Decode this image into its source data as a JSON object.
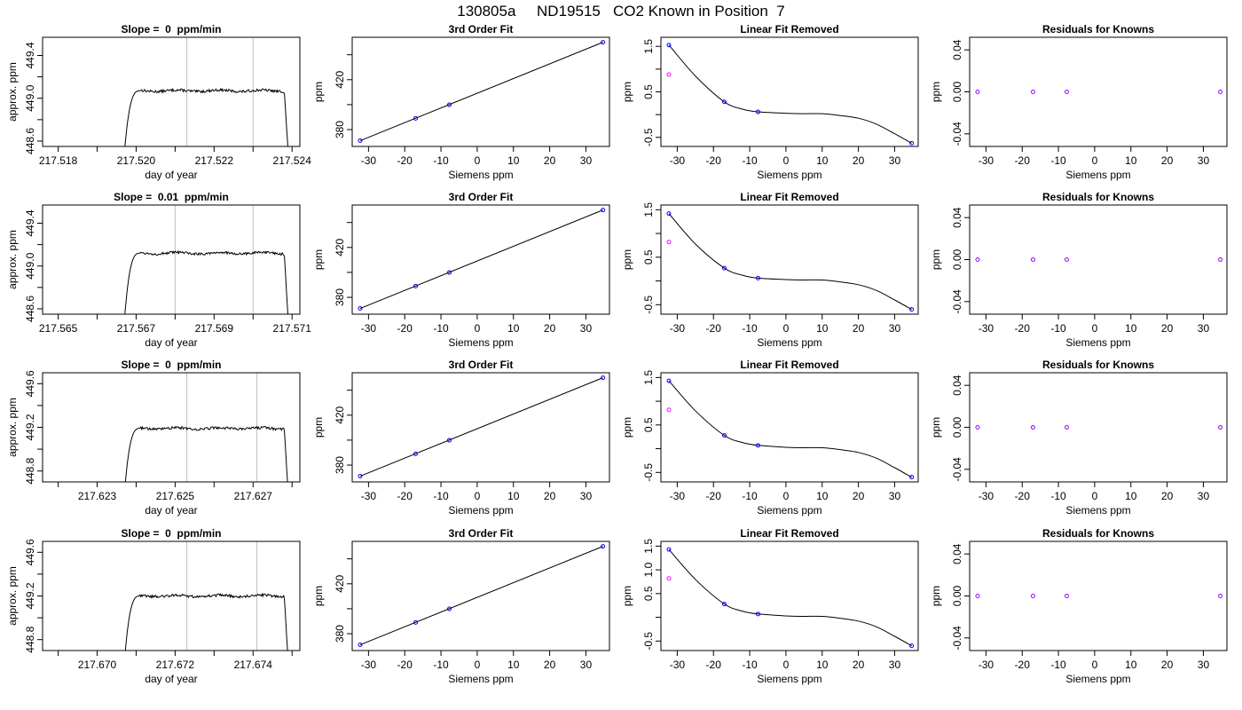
{
  "main_title": "130805a     ND19515   CO2 Known in Position  7",
  "colors": {
    "line": "#000000",
    "gray_marker": "#c0c0c0",
    "point_blue": "#0000ff",
    "point_magenta": "#ff00ff",
    "point_purple": "#9900ff"
  },
  "chart_data": [
    {
      "row": 1,
      "col": 1,
      "type": "line",
      "title": "Slope =  0  ppm/min",
      "xlabel": "day of year",
      "ylabel": "approx. ppm",
      "xlim": [
        217.5176,
        217.5242
      ],
      "ylim": [
        448.55,
        449.57
      ],
      "xticks": [
        217.518,
        217.52,
        217.522,
        217.524
      ],
      "xtick_labels": [
        "217.518",
        "217.520",
        "217.522",
        "217.524"
      ],
      "xminor": [
        217.519,
        217.521,
        217.523
      ],
      "yticks": [
        448.6,
        448.8,
        449.0,
        449.2,
        449.4
      ],
      "ytick_labels": [
        "448.6",
        "",
        "449.0",
        "",
        "449.4"
      ],
      "vlines": [
        217.5213,
        217.523
      ],
      "trace": {
        "start": 217.5197,
        "rise_end": 217.5201,
        "end": 217.5238,
        "drop_end": 217.5239,
        "level": 449.07,
        "bottom": 448.5,
        "noise": 0.012
      }
    },
    {
      "row": 1,
      "col": 2,
      "type": "scatter",
      "title": "3rd Order Fit",
      "xlabel": "Siemens ppm",
      "ylabel": "ppm",
      "xlim": [
        -34.5,
        36.5
      ],
      "ylim": [
        366.5,
        454
      ],
      "xticks": [
        -30,
        -20,
        -10,
        0,
        10,
        20,
        30
      ],
      "xtick_labels": [
        "-30",
        "-20",
        "-10",
        "0",
        "10",
        "20",
        "30"
      ],
      "yticks": [
        380,
        400,
        420,
        440
      ],
      "ytick_labels": [
        "380",
        "",
        "420",
        ""
      ],
      "fit_line": {
        "x": [
          -32.3,
          34.7
        ],
        "y": [
          371.1,
          450.0
        ]
      },
      "points": [
        {
          "x": -32.3,
          "y": 371.1
        },
        {
          "x": -17.0,
          "y": 389.0
        },
        {
          "x": -7.7,
          "y": 399.9
        },
        {
          "x": 34.7,
          "y": 450.0
        }
      ]
    },
    {
      "row": 1,
      "col": 3,
      "type": "scatter",
      "title": "Linear Fit Removed",
      "xlabel": "Siemens ppm",
      "ylabel": "ppm",
      "xlim": [
        -34.5,
        36.5
      ],
      "ylim": [
        -0.7,
        1.7
      ],
      "xticks": [
        -30,
        -20,
        -10,
        0,
        10,
        20,
        30
      ],
      "xtick_labels": [
        "-30",
        "-20",
        "-10",
        "0",
        "10",
        "20",
        "30"
      ],
      "yticks": [
        -0.5,
        0,
        0.5,
        1.0,
        1.5
      ],
      "ytick_labels": [
        "-0.5",
        "",
        "0.5",
        "",
        "1.5"
      ],
      "curve": {
        "x": [
          -32.3,
          -25,
          -17,
          -12,
          -7.7,
          0,
          5,
          10,
          15,
          20,
          25,
          30,
          34.7
        ],
        "y": [
          1.53,
          0.85,
          0.28,
          0.12,
          0.06,
          0.03,
          0.02,
          0.02,
          -0.02,
          -0.08,
          -0.21,
          -0.42,
          -0.63
        ]
      },
      "points_blue": [
        {
          "x": -32.3,
          "y": 1.53
        },
        {
          "x": -17.0,
          "y": 0.28
        },
        {
          "x": -7.7,
          "y": 0.06
        },
        {
          "x": 34.7,
          "y": -0.63
        }
      ],
      "points_magenta": [
        {
          "x": -32.3,
          "y": 0.88
        }
      ]
    },
    {
      "row": 1,
      "col": 4,
      "type": "scatter",
      "title": "Residuals for Knowns",
      "xlabel": "Siemens ppm",
      "ylabel": "ppm",
      "xlim": [
        -34.5,
        36.5
      ],
      "ylim": [
        -0.052,
        0.052
      ],
      "xticks": [
        -30,
        -20,
        -10,
        0,
        10,
        20,
        30
      ],
      "xtick_labels": [
        "-30",
        "-20",
        "-10",
        "0",
        "10",
        "20",
        "30"
      ],
      "yticks": [
        -0.04,
        0,
        0.04
      ],
      "ytick_labels": [
        "-0.04",
        "0.00",
        "0.04"
      ],
      "points": [
        {
          "x": -32.3,
          "y": 0
        },
        {
          "x": -17.0,
          "y": 0
        },
        {
          "x": -7.7,
          "y": 0
        },
        {
          "x": 34.7,
          "y": 0
        }
      ]
    },
    {
      "row": 2,
      "col": 1,
      "type": "line",
      "title": "Slope =  0.01  ppm/min",
      "xlabel": "day of year",
      "ylabel": "approx. ppm",
      "xlim": [
        217.5646,
        217.5712
      ],
      "ylim": [
        448.55,
        449.57
      ],
      "xticks": [
        217.565,
        217.567,
        217.569,
        217.571
      ],
      "xtick_labels": [
        "217.565",
        "217.567",
        "217.569",
        "217.571"
      ],
      "xminor": [
        217.566,
        217.568,
        217.57
      ],
      "yticks": [
        448.6,
        448.8,
        449.0,
        449.2,
        449.4
      ],
      "ytick_labels": [
        "448.6",
        "",
        "449.0",
        "",
        "449.4"
      ],
      "vlines": [
        217.568,
        217.57
      ],
      "trace": {
        "start": 217.5667,
        "rise_end": 217.5671,
        "end": 217.5708,
        "drop_end": 217.5709,
        "level": 449.12,
        "bottom": 448.5,
        "noise": 0.012
      }
    },
    {
      "row": 2,
      "col": 2,
      "type": "scatter",
      "title": "3rd Order Fit",
      "xlabel": "Siemens ppm",
      "ylabel": "ppm",
      "xlim": [
        -34.5,
        36.5
      ],
      "ylim": [
        366.5,
        454
      ],
      "xticks": [
        -30,
        -20,
        -10,
        0,
        10,
        20,
        30
      ],
      "xtick_labels": [
        "-30",
        "-20",
        "-10",
        "0",
        "10",
        "20",
        "30"
      ],
      "yticks": [
        380,
        400,
        420,
        440
      ],
      "ytick_labels": [
        "380",
        "",
        "420",
        ""
      ],
      "fit_line": {
        "x": [
          -32.3,
          34.7
        ],
        "y": [
          371.1,
          450.0
        ]
      },
      "points": [
        {
          "x": -32.3,
          "y": 371.1
        },
        {
          "x": -17.0,
          "y": 389.0
        },
        {
          "x": -7.7,
          "y": 399.9
        },
        {
          "x": 34.7,
          "y": 450.0
        }
      ]
    },
    {
      "row": 2,
      "col": 3,
      "type": "scatter",
      "title": "Linear Fit Removed",
      "xlabel": "Siemens ppm",
      "ylabel": "ppm",
      "xlim": [
        -34.5,
        36.5
      ],
      "ylim": [
        -0.7,
        1.6
      ],
      "xticks": [
        -30,
        -20,
        -10,
        0,
        10,
        20,
        30
      ],
      "xtick_labels": [
        "-30",
        "-20",
        "-10",
        "0",
        "10",
        "20",
        "30"
      ],
      "yticks": [
        -0.5,
        0,
        0.5,
        1.0,
        1.5
      ],
      "ytick_labels": [
        "-0.5",
        "",
        "0.5",
        "",
        "1.5"
      ],
      "curve": {
        "x": [
          -32.3,
          -25,
          -17,
          -12,
          -7.7,
          0,
          5,
          10,
          15,
          20,
          25,
          30,
          34.7
        ],
        "y": [
          1.42,
          0.78,
          0.27,
          0.12,
          0.06,
          0.03,
          0.02,
          0.02,
          -0.02,
          -0.08,
          -0.2,
          -0.4,
          -0.6
        ]
      },
      "points_blue": [
        {
          "x": -32.3,
          "y": 1.42
        },
        {
          "x": -17.0,
          "y": 0.27
        },
        {
          "x": -7.7,
          "y": 0.06
        },
        {
          "x": 34.7,
          "y": -0.6
        }
      ],
      "points_magenta": [
        {
          "x": -32.3,
          "y": 0.82
        }
      ]
    },
    {
      "row": 2,
      "col": 4,
      "type": "scatter",
      "title": "Residuals for Knowns",
      "xlabel": "Siemens ppm",
      "ylabel": "ppm",
      "xlim": [
        -34.5,
        36.5
      ],
      "ylim": [
        -0.052,
        0.052
      ],
      "xticks": [
        -30,
        -20,
        -10,
        0,
        10,
        20,
        30
      ],
      "xtick_labels": [
        "-30",
        "-20",
        "-10",
        "0",
        "10",
        "20",
        "30"
      ],
      "yticks": [
        -0.04,
        0,
        0.04
      ],
      "ytick_labels": [
        "-0.04",
        "0.00",
        "0.04"
      ],
      "points": [
        {
          "x": -32.3,
          "y": 0
        },
        {
          "x": -17.0,
          "y": 0
        },
        {
          "x": -7.7,
          "y": 0
        },
        {
          "x": 34.7,
          "y": 0
        }
      ]
    },
    {
      "row": 3,
      "col": 1,
      "type": "line",
      "title": "Slope =  0  ppm/min",
      "xlabel": "day of year",
      "ylabel": "approx. ppm",
      "xlim": [
        217.6216,
        217.6282
      ],
      "ylim": [
        448.7,
        449.7
      ],
      "xticks": [
        217.623,
        217.625,
        217.627
      ],
      "xtick_labels": [
        "217.623",
        "217.625",
        "217.627"
      ],
      "xminor": [
        217.622,
        217.624,
        217.626,
        217.628
      ],
      "yticks": [
        448.8,
        449.0,
        449.2,
        449.4,
        449.6
      ],
      "ytick_labels": [
        "448.8",
        "",
        "449.2",
        "",
        "449.6"
      ],
      "vlines": [
        217.6253,
        217.6271
      ],
      "trace": {
        "start": 217.6237,
        "rise_end": 217.6241,
        "end": 217.6278,
        "drop_end": 217.6279,
        "level": 449.19,
        "bottom": 448.6,
        "noise": 0.012
      }
    },
    {
      "row": 3,
      "col": 2,
      "type": "scatter",
      "title": "3rd Order Fit",
      "xlabel": "Siemens ppm",
      "ylabel": "ppm",
      "xlim": [
        -34.5,
        36.5
      ],
      "ylim": [
        366.5,
        454
      ],
      "xticks": [
        -30,
        -20,
        -10,
        0,
        10,
        20,
        30
      ],
      "xtick_labels": [
        "-30",
        "-20",
        "-10",
        "0",
        "10",
        "20",
        "30"
      ],
      "yticks": [
        380,
        400,
        420,
        440
      ],
      "ytick_labels": [
        "380",
        "",
        "420",
        ""
      ],
      "fit_line": {
        "x": [
          -32.3,
          34.7
        ],
        "y": [
          371.1,
          450.0
        ]
      },
      "points": [
        {
          "x": -32.3,
          "y": 371.1
        },
        {
          "x": -17.0,
          "y": 389.0
        },
        {
          "x": -7.7,
          "y": 399.9
        },
        {
          "x": 34.7,
          "y": 450.0
        }
      ]
    },
    {
      "row": 3,
      "col": 3,
      "type": "scatter",
      "title": "Linear Fit Removed",
      "xlabel": "Siemens ppm",
      "ylabel": "ppm",
      "xlim": [
        -34.5,
        36.5
      ],
      "ylim": [
        -0.7,
        1.6
      ],
      "xticks": [
        -30,
        -20,
        -10,
        0,
        10,
        20,
        30
      ],
      "xtick_labels": [
        "-30",
        "-20",
        "-10",
        "0",
        "10",
        "20",
        "30"
      ],
      "yticks": [
        -0.5,
        0,
        0.5,
        1.0,
        1.5
      ],
      "ytick_labels": [
        "-0.5",
        "",
        "0.5",
        "",
        "1.5"
      ],
      "curve": {
        "x": [
          -32.3,
          -25,
          -17,
          -12,
          -7.7,
          0,
          5,
          10,
          15,
          20,
          25,
          30,
          34.7
        ],
        "y": [
          1.43,
          0.8,
          0.28,
          0.13,
          0.07,
          0.03,
          0.02,
          0.02,
          -0.02,
          -0.08,
          -0.2,
          -0.4,
          -0.6
        ]
      },
      "points_blue": [
        {
          "x": -32.3,
          "y": 1.43
        },
        {
          "x": -17.0,
          "y": 0.28
        },
        {
          "x": -7.7,
          "y": 0.07
        },
        {
          "x": 34.7,
          "y": -0.6
        }
      ],
      "points_magenta": [
        {
          "x": -32.3,
          "y": 0.82
        }
      ]
    },
    {
      "row": 3,
      "col": 4,
      "type": "scatter",
      "title": "Residuals for Knowns",
      "xlabel": "Siemens ppm",
      "ylabel": "ppm",
      "xlim": [
        -34.5,
        36.5
      ],
      "ylim": [
        -0.052,
        0.052
      ],
      "xticks": [
        -30,
        -20,
        -10,
        0,
        10,
        20,
        30
      ],
      "xtick_labels": [
        "-30",
        "-20",
        "-10",
        "0",
        "10",
        "20",
        "30"
      ],
      "yticks": [
        -0.04,
        0,
        0.04
      ],
      "ytick_labels": [
        "-0.04",
        "0.00",
        "0.04"
      ],
      "points": [
        {
          "x": -32.3,
          "y": 0
        },
        {
          "x": -17.0,
          "y": 0
        },
        {
          "x": -7.7,
          "y": 0
        },
        {
          "x": 34.7,
          "y": 0
        }
      ]
    },
    {
      "row": 4,
      "col": 1,
      "type": "line",
      "title": "Slope =  0  ppm/min",
      "xlabel": "day of year",
      "ylabel": "approx. ppm",
      "xlim": [
        217.6686,
        217.6752
      ],
      "ylim": [
        448.7,
        449.7
      ],
      "xticks": [
        217.67,
        217.672,
        217.674
      ],
      "xtick_labels": [
        "217.670",
        "217.672",
        "217.674"
      ],
      "xminor": [
        217.669,
        217.671,
        217.673,
        217.675
      ],
      "yticks": [
        448.8,
        449.0,
        449.2,
        449.4,
        449.6
      ],
      "ytick_labels": [
        "448.8",
        "",
        "449.2",
        "",
        "449.6"
      ],
      "vlines": [
        217.6723,
        217.6741
      ],
      "trace": {
        "start": 217.6707,
        "rise_end": 217.6711,
        "end": 217.6748,
        "drop_end": 217.6749,
        "level": 449.2,
        "bottom": 448.6,
        "noise": 0.012
      }
    },
    {
      "row": 4,
      "col": 2,
      "type": "scatter",
      "title": "3rd Order Fit",
      "xlabel": "Siemens ppm",
      "ylabel": "ppm",
      "xlim": [
        -34.5,
        36.5
      ],
      "ylim": [
        366.5,
        454
      ],
      "xticks": [
        -30,
        -20,
        -10,
        0,
        10,
        20,
        30
      ],
      "xtick_labels": [
        "-30",
        "-20",
        "-10",
        "0",
        "10",
        "20",
        "30"
      ],
      "yticks": [
        380,
        400,
        420,
        440
      ],
      "ytick_labels": [
        "380",
        "",
        "420",
        ""
      ],
      "fit_line": {
        "x": [
          -32.3,
          34.7
        ],
        "y": [
          371.1,
          450.0
        ]
      },
      "points": [
        {
          "x": -32.3,
          "y": 371.1
        },
        {
          "x": -17.0,
          "y": 389.0
        },
        {
          "x": -7.7,
          "y": 399.9
        },
        {
          "x": 34.7,
          "y": 450.0
        }
      ]
    },
    {
      "row": 4,
      "col": 3,
      "type": "scatter",
      "title": "Linear Fit Removed",
      "xlabel": "Siemens ppm",
      "ylabel": "ppm",
      "xlim": [
        -34.5,
        36.5
      ],
      "ylim": [
        -0.7,
        1.6
      ],
      "xticks": [
        -30,
        -20,
        -10,
        0,
        10,
        20,
        30
      ],
      "xtick_labels": [
        "-30",
        "-20",
        "-10",
        "0",
        "10",
        "20",
        "30"
      ],
      "yticks": [
        -0.5,
        0,
        0.5,
        1.0,
        1.5
      ],
      "ytick_labels": [
        "-0.5",
        "",
        "0.5",
        "1.0",
        "1.5"
      ],
      "curve": {
        "x": [
          -32.3,
          -25,
          -17,
          -12,
          -7.7,
          0,
          5,
          10,
          15,
          20,
          25,
          30,
          34.7
        ],
        "y": [
          1.43,
          0.8,
          0.28,
          0.13,
          0.07,
          0.03,
          0.02,
          0.02,
          -0.02,
          -0.08,
          -0.2,
          -0.4,
          -0.6
        ]
      },
      "points_blue": [
        {
          "x": -32.3,
          "y": 1.43
        },
        {
          "x": -17.0,
          "y": 0.28
        },
        {
          "x": -7.7,
          "y": 0.07
        },
        {
          "x": 34.7,
          "y": -0.6
        }
      ],
      "points_magenta": [
        {
          "x": -32.3,
          "y": 0.82
        }
      ]
    },
    {
      "row": 4,
      "col": 4,
      "type": "scatter",
      "title": "Residuals for Knowns",
      "xlabel": "Siemens ppm",
      "ylabel": "ppm",
      "xlim": [
        -34.5,
        36.5
      ],
      "ylim": [
        -0.052,
        0.052
      ],
      "xticks": [
        -30,
        -20,
        -10,
        0,
        10,
        20,
        30
      ],
      "xtick_labels": [
        "-30",
        "-20",
        "-10",
        "0",
        "10",
        "20",
        "30"
      ],
      "yticks": [
        -0.04,
        0,
        0.04
      ],
      "ytick_labels": [
        "-0.04",
        "0.00",
        "0.04"
      ],
      "points": [
        {
          "x": -32.3,
          "y": 0
        },
        {
          "x": -17.0,
          "y": 0
        },
        {
          "x": -7.7,
          "y": 0
        },
        {
          "x": 34.7,
          "y": 0
        }
      ]
    }
  ]
}
